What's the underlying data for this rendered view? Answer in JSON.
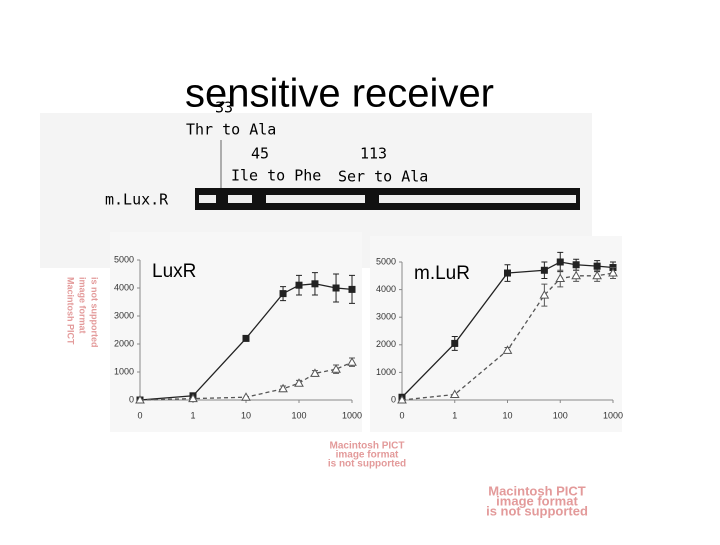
{
  "slide_title": "sensitive receiver",
  "diagram": {
    "label": "m.Lux.R",
    "mutations": [
      {
        "position": "33",
        "change": "Thr to Ala"
      },
      {
        "position": "45",
        "change": "Ile to Phe"
      },
      {
        "position": "113",
        "change": "Ser to Ala"
      }
    ]
  },
  "placeholders": [
    [
      "Macintosh PICT",
      "image format",
      "is not supported"
    ],
    [
      "Macintosh PICT",
      "image format",
      "is not supported"
    ],
    [
      "Macintosh PICT",
      "image format",
      "is not supported"
    ]
  ],
  "chart_data": [
    {
      "type": "line",
      "title": "LuxR",
      "xscale": "log",
      "x": [
        0.1,
        1,
        10,
        50,
        100,
        200,
        500,
        1000
      ],
      "xlim": [
        0.1,
        1000
      ],
      "xticks": [
        {
          "value": 0.1,
          "label": "0"
        },
        1,
        10,
        100,
        1000
      ],
      "ylim": [
        0,
        5000
      ],
      "yticks": [
        0,
        1000,
        2000,
        3000,
        4000,
        5000
      ],
      "series": [
        {
          "color": "#222222",
          "marker": "square",
          "line_style": "solid",
          "values": [
            0,
            150,
            2200,
            3800,
            4100,
            4150,
            4000,
            3950
          ],
          "errors": [
            0,
            0,
            0,
            250,
            350,
            400,
            500,
            500
          ]
        },
        {
          "color": "#555555",
          "marker": "triangle",
          "line_style": "dashed",
          "values": [
            0,
            50,
            100,
            400,
            600,
            950,
            1100,
            1350
          ],
          "errors": [
            0,
            0,
            0,
            100,
            100,
            100,
            150,
            150
          ]
        }
      ]
    },
    {
      "type": "line",
      "title": "m.LuR",
      "xscale": "log",
      "x": [
        0.1,
        1,
        10,
        50,
        100,
        200,
        500,
        1000
      ],
      "xlim": [
        0.1,
        1000
      ],
      "xticks": [
        {
          "value": 0.1,
          "label": "0"
        },
        1,
        10,
        100,
        1000
      ],
      "ylim": [
        0,
        5000
      ],
      "yticks": [
        0,
        1000,
        2000,
        3000,
        4000,
        5000
      ],
      "series": [
        {
          "color": "#222222",
          "marker": "square",
          "line_style": "solid",
          "values": [
            100,
            2050,
            4600,
            4700,
            5000,
            4900,
            4850,
            4800
          ],
          "errors": [
            0,
            250,
            300,
            300,
            350,
            200,
            200,
            200
          ]
        },
        {
          "color": "#555555",
          "marker": "triangle",
          "line_style": "dashed",
          "values": [
            0,
            200,
            1800,
            3800,
            4400,
            4500,
            4500,
            4600
          ],
          "errors": [
            0,
            0,
            100,
            400,
            300,
            200,
            200,
            200
          ]
        }
      ]
    }
  ]
}
